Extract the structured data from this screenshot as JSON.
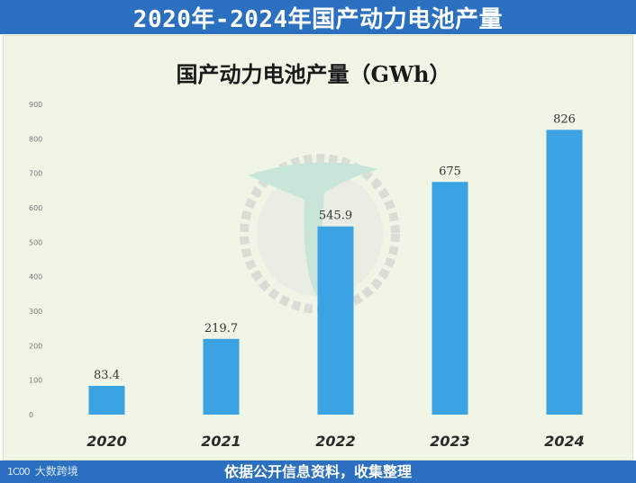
{
  "header": {
    "title": "2020年-2024年国产动力电池产量"
  },
  "footer": {
    "brand_mark": "1C00",
    "brand_name": "大数跨境",
    "source": "依据公开信息资料，收集整理"
  },
  "colors": {
    "header_bg": "#2a6fc0",
    "bar": "#3ba3e2",
    "panel_bg": "#eff6e6"
  },
  "chart_data": {
    "type": "bar",
    "title": "国产动力电池产量（GWh）",
    "categories": [
      "2020",
      "2021",
      "2022",
      "2023",
      "2024"
    ],
    "values": [
      83.4,
      219.7,
      545.9,
      675,
      826
    ],
    "value_labels": [
      "83.4",
      "219.7",
      "545.9",
      "675",
      "826"
    ],
    "yticks": [
      0,
      100,
      200,
      300,
      400,
      500,
      600,
      700,
      800,
      900
    ],
    "ylim": [
      0,
      900
    ],
    "grid": false,
    "legend": "none"
  }
}
